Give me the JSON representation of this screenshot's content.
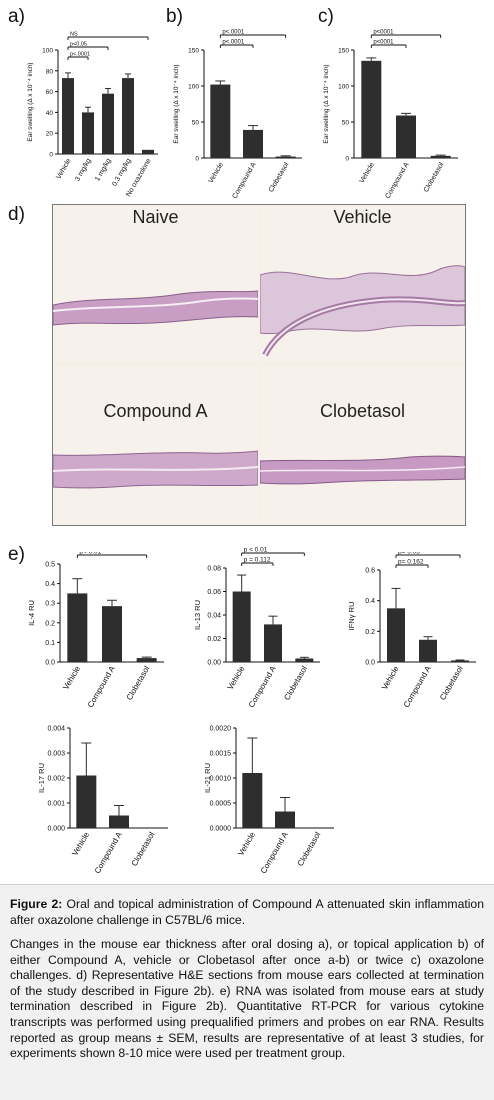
{
  "panel_letters": {
    "a": "a)",
    "b": "b)",
    "c": "c)",
    "d": "d)",
    "e": "e)"
  },
  "chart_data": [
    {
      "id": "a",
      "type": "bar",
      "ylabel": "Ear swelling (Δ x 10⁻⁴ inch)",
      "categories": [
        "Vehicle",
        "3 mg/kg",
        "1 mg/kg",
        "0.3 mg/kg",
        "No oxazolone"
      ],
      "values": [
        73,
        40,
        58,
        73,
        4
      ],
      "errors": [
        5,
        5,
        5,
        4,
        0
      ],
      "ylim": [
        0,
        100
      ],
      "yticks": [
        0,
        20,
        40,
        60,
        80,
        100
      ],
      "annotations": [
        {
          "text": "NS",
          "from": 0,
          "to": 4,
          "level": 1
        },
        {
          "text": "p<0.05",
          "from": 0,
          "to": 2,
          "level": 2
        },
        {
          "text": "p<.0001",
          "from": 0,
          "to": 1,
          "level": 3
        }
      ]
    },
    {
      "id": "b",
      "type": "bar",
      "ylabel": "Ear swelling (Δ x 10⁻⁴ inch)",
      "categories": [
        "Vehicle",
        "Compound A",
        "Clobetasol"
      ],
      "values": [
        102,
        39,
        2
      ],
      "errors": [
        5,
        6,
        1
      ],
      "ylim": [
        0,
        150
      ],
      "yticks": [
        0,
        50,
        100,
        150
      ],
      "annotations": [
        {
          "text": "p<.0001",
          "from": 0,
          "to": 2,
          "level": 1
        },
        {
          "text": "p<.0001",
          "from": 0,
          "to": 1,
          "level": 2
        }
      ]
    },
    {
      "id": "c",
      "type": "bar",
      "ylabel": "Ear swelling (Δ x 10⁻⁴ inch)",
      "categories": [
        "Vehicle",
        "Compound A",
        "Clobetasol"
      ],
      "values": [
        135,
        59,
        3
      ],
      "errors": [
        4,
        3,
        1
      ],
      "ylim": [
        0,
        150
      ],
      "yticks": [
        0,
        50,
        100,
        150
      ],
      "annotations": [
        {
          "text": "p<0001",
          "from": 0,
          "to": 2,
          "level": 1
        },
        {
          "text": "p<0001",
          "from": 0,
          "to": 1,
          "level": 2
        }
      ]
    },
    {
      "id": "e1",
      "type": "bar",
      "ylabel": "IL-4 RU",
      "categories": [
        "Vehicle",
        "Compound A",
        "Clobetasol"
      ],
      "values": [
        0.35,
        0.285,
        0.02
      ],
      "errors": [
        0.075,
        0.03,
        0.005
      ],
      "ylim": [
        0,
        0.5
      ],
      "yticks": [
        "0.0",
        "0.1",
        "0.2",
        "0.3",
        "0.4",
        "0.5"
      ],
      "annotations": [
        {
          "text": "p< 0.01",
          "from": 0,
          "to": 2,
          "level": 1
        }
      ]
    },
    {
      "id": "e2",
      "type": "bar",
      "ylabel": "IL-13 RU",
      "categories": [
        "Vehicle",
        "Compound A",
        "Clobetasol"
      ],
      "values": [
        0.06,
        0.032,
        0.003
      ],
      "errors": [
        0.014,
        0.007,
        0.001
      ],
      "ylim": [
        0,
        0.08
      ],
      "yticks": [
        "0.00",
        "0.02",
        "0.04",
        "0.06",
        "0.08"
      ],
      "annotations": [
        {
          "text": "p < 0.01",
          "from": 0,
          "to": 2,
          "level": 1
        },
        {
          "text": "p = 0.112",
          "from": 0,
          "to": 1,
          "level": 2
        }
      ]
    },
    {
      "id": "e3",
      "type": "bar",
      "ylabel": "IFNγ RU",
      "categories": [
        "Vehicle",
        "Compound A",
        "Clobetasol"
      ],
      "values": [
        0.35,
        0.145,
        0.01
      ],
      "errors": [
        0.13,
        0.02,
        0.003
      ],
      "ylim": [
        0,
        0.6
      ],
      "yticks": [
        "0.0",
        "0.2",
        "0.4",
        "0.6"
      ],
      "annotations": [
        {
          "text": "p= 0.05",
          "from": 0,
          "to": 2,
          "level": 1
        },
        {
          "text": "p= 0.162",
          "from": 0,
          "to": 1,
          "level": 2
        }
      ]
    },
    {
      "id": "e4",
      "type": "bar",
      "ylabel": "IL-17 RU",
      "categories": [
        "Vehicle",
        "Compound A",
        "Clobetasol"
      ],
      "values": [
        0.0021,
        0.0005,
        0
      ],
      "errors": [
        0.0013,
        0.0004,
        0
      ],
      "ylim": [
        0,
        0.004
      ],
      "yticks": [
        "0.000",
        "0.001",
        "0.002",
        "0.003",
        "0.004"
      ],
      "annotations": []
    },
    {
      "id": "e5",
      "type": "bar",
      "ylabel": "IL-21 RU",
      "categories": [
        "Vehicle",
        "Compound A",
        "Clobetasol"
      ],
      "values": [
        0.0011,
        0.00033,
        0
      ],
      "errors": [
        0.0007,
        0.00028,
        0
      ],
      "ylim": [
        0,
        0.002
      ],
      "yticks": [
        "0.0000",
        "0.0005",
        "0.0010",
        "0.0015",
        "0.0020"
      ],
      "annotations": []
    }
  ],
  "histology": {
    "naive": "Naive",
    "vehicle": "Vehicle",
    "compound_a": "Compound A",
    "clobetasol": "Clobetasol"
  },
  "caption": {
    "label": "Figure 2:",
    "title": " Oral and topical administration of Compound A attenuated skin inflammation after oxazolone challenge in C57BL/6 mice.",
    "body": "Changes in the mouse ear thickness after oral dosing a), or topical application b) of either Compound A, vehicle or Clobetasol after once a-b) or twice c) oxazolone challenges. d) Representative H&E sections from mouse ears collected at termination of the study described in Figure 2b). e) RNA was isolated from mouse ears at study termination described in Figure 2b). Quantitative RT-PCR for various cytokine transcripts was performed using prequalified primers and probes on ear RNA. Results reported as group means ± SEM, results are representative of at least 3 studies, for experiments shown 8-10 mice were used per treatment group."
  },
  "colors": {
    "bar": "#2e2e2e",
    "axis": "#111111"
  }
}
